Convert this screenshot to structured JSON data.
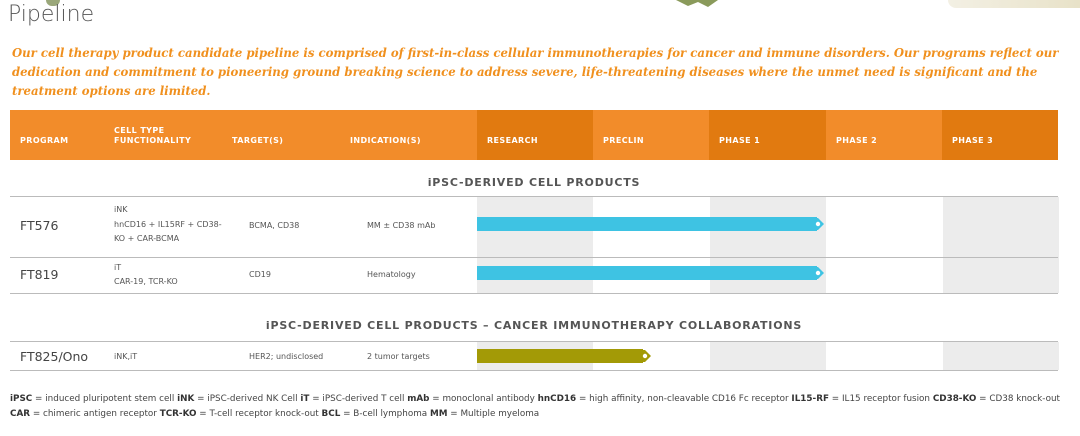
{
  "page": {
    "title": "Pipeline",
    "intro": "Our cell therapy product candidate pipeline is comprised of first-in-class cellular immunotherapies for cancer and immune disorders. Our programs reflect our dedication and commitment to pioneering ground breaking science to address severe, life-threatening diseases where the unmet need is significant and the treatment options are limited."
  },
  "table": {
    "headers": {
      "program": "PROGRAM",
      "cell_type_1": "CELL TYPE",
      "cell_type_2": "FUNCTIONALITY",
      "targets": "TARGET(S)",
      "indications": "INDICATION(S)",
      "research": "RESEARCH",
      "preclin": "PRECLIN",
      "phase1": "PHASE 1",
      "phase2": "PHASE 2",
      "phase3": "PHASE 3"
    },
    "sections": [
      {
        "title": "iPSC-DERIVED CELL PRODUCTS",
        "rows": [
          {
            "program": "FT576",
            "cell_type": "iNK",
            "functionality": "hnCD16 + IL15RF + CD38-",
            "functionality2": "KO + CAR-BCMA",
            "targets": "BCMA, CD38",
            "indication": "MM ± CD38 mAb",
            "stage_reached": "Phase 1",
            "bar_color": "#3ec3e3"
          },
          {
            "program": "FT819",
            "cell_type": "iT",
            "functionality": "CAR-19, TCR-KO",
            "functionality2": "",
            "targets": "CD19",
            "indication": "Hematology",
            "stage_reached": "Phase 1",
            "bar_color": "#3ec3e3"
          }
        ]
      },
      {
        "title": "iPSC-DERIVED CELL PRODUCTS – CANCER IMMUNOTHERAPY COLLABORATIONS",
        "rows": [
          {
            "program": "FT825/Ono",
            "cell_type": "iNK,iT",
            "targets": "HER2; undisclosed",
            "indication": "2 tumor targets",
            "stage_reached": "Preclin",
            "bar_color": "#a39a06"
          }
        ]
      }
    ]
  },
  "footnote": {
    "items": [
      {
        "abbr": "iPSC",
        "def": "induced pluripotent stem cell"
      },
      {
        "abbr": "iNK",
        "def": "iPSC-derived NK Cell"
      },
      {
        "abbr": "iT",
        "def": "iPSC-derived T cell"
      },
      {
        "abbr": "mAb",
        "def": "monoclonal antibody"
      },
      {
        "abbr": "hnCD16",
        "def": "high affinity, non-cleavable CD16 Fc receptor"
      },
      {
        "abbr": "IL15-RF",
        "def": "IL15 receptor fusion"
      },
      {
        "abbr": "CD38-KO",
        "def": "CD38 knock-out"
      },
      {
        "abbr": "CAR",
        "def": "chimeric antigen receptor"
      },
      {
        "abbr": "TCR-KO",
        "def": "T-cell receptor knock-out"
      },
      {
        "abbr": "BCL",
        "def": "B-cell lymphoma"
      },
      {
        "abbr": "MM",
        "def": "Multiple myeloma"
      }
    ]
  }
}
